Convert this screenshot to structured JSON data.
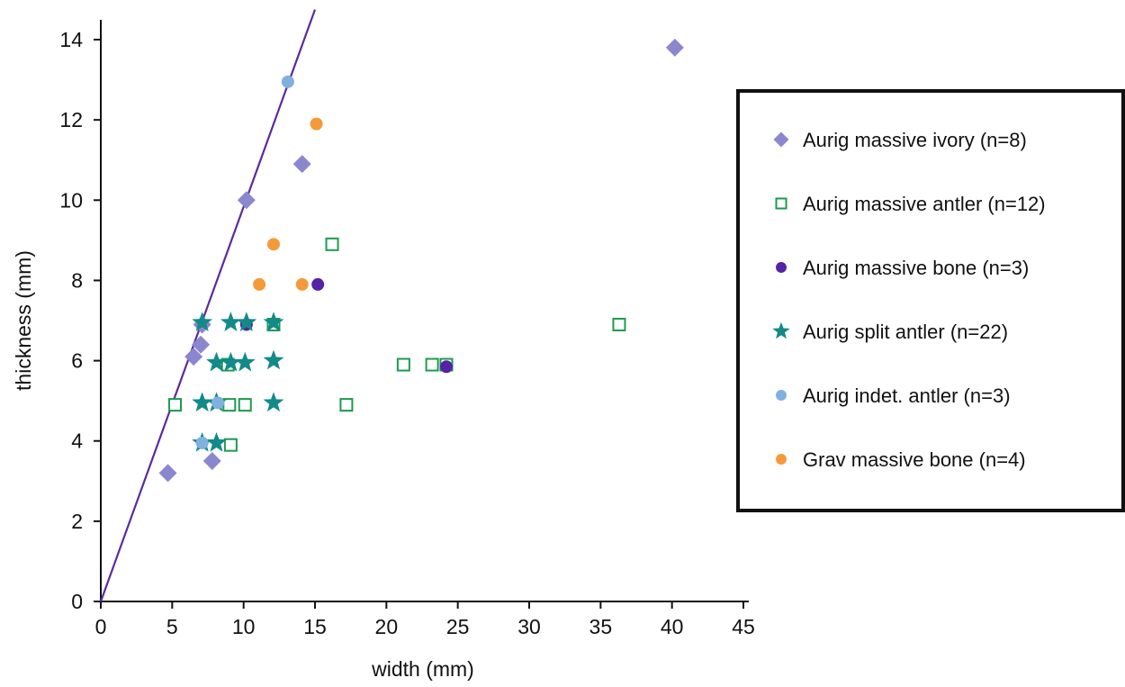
{
  "chart_data": {
    "type": "scatter",
    "title": "",
    "xlabel": "width (mm)",
    "ylabel": "thickness (mm)",
    "xlim": [
      0,
      45
    ],
    "ylim": [
      0,
      14.5
    ],
    "x_ticks": [
      0,
      5,
      10,
      15,
      20,
      25,
      30,
      35,
      40,
      45
    ],
    "y_ticks": [
      0,
      2,
      4,
      6,
      8,
      10,
      12,
      14
    ],
    "grid": false,
    "legend_position": "right",
    "reference_line": {
      "x": [
        0,
        15
      ],
      "y": [
        0,
        14.75
      ],
      "color": "#5b2a9e"
    },
    "series": [
      {
        "name": "Aurig massive ivory (n=8)",
        "marker": "diamond",
        "color": "#8b87cf",
        "filled": true,
        "points": [
          [
            4.7,
            3.2
          ],
          [
            6.5,
            6.1
          ],
          [
            7.0,
            6.4
          ],
          [
            7.8,
            3.5
          ],
          [
            10.2,
            10.0
          ],
          [
            14.1,
            10.9
          ],
          [
            40.2,
            13.8
          ],
          [
            7.1,
            6.9
          ]
        ]
      },
      {
        "name": "Aurig massive antler (n=12)",
        "marker": "square",
        "color": "#1e9a4e",
        "filled": false,
        "points": [
          [
            5.2,
            4.9
          ],
          [
            9.0,
            4.9
          ],
          [
            10.1,
            4.9
          ],
          [
            9.1,
            3.9
          ],
          [
            8.9,
            5.9
          ],
          [
            12.1,
            6.9
          ],
          [
            16.2,
            8.9
          ],
          [
            17.2,
            4.9
          ],
          [
            21.2,
            5.9
          ],
          [
            23.2,
            5.9
          ],
          [
            24.2,
            5.9
          ],
          [
            36.3,
            6.9
          ]
        ]
      },
      {
        "name": "Aurig massive bone (n=3)",
        "marker": "circle",
        "color": "#5523a3",
        "filled": true,
        "points": [
          [
            10.2,
            6.9
          ],
          [
            15.2,
            7.9
          ],
          [
            24.2,
            5.85
          ]
        ]
      },
      {
        "name": "Aurig split antler (n=22)",
        "marker": "star",
        "color": "#128a8a",
        "filled": true,
        "points": [
          [
            7.1,
            6.95
          ],
          [
            9.1,
            6.95
          ],
          [
            10.2,
            6.95
          ],
          [
            12.1,
            6.95
          ],
          [
            8.1,
            5.95
          ],
          [
            9.1,
            5.95
          ],
          [
            10.1,
            5.95
          ],
          [
            12.1,
            6.0
          ],
          [
            7.1,
            4.95
          ],
          [
            8.1,
            4.95
          ],
          [
            12.1,
            4.95
          ],
          [
            7.1,
            3.95
          ],
          [
            8.1,
            3.95
          ]
        ]
      },
      {
        "name": "Aurig indet. antler (n=3)",
        "marker": "circle",
        "color": "#7fb0de",
        "filled": true,
        "points": [
          [
            13.1,
            12.95
          ],
          [
            8.2,
            4.95
          ],
          [
            7.1,
            3.95
          ]
        ]
      },
      {
        "name": "Grav massive bone (n=4)",
        "marker": "circle",
        "color": "#f59a3a",
        "filled": true,
        "points": [
          [
            15.1,
            11.9
          ],
          [
            12.1,
            8.9
          ],
          [
            11.1,
            7.9
          ],
          [
            14.1,
            7.9
          ]
        ]
      }
    ]
  }
}
